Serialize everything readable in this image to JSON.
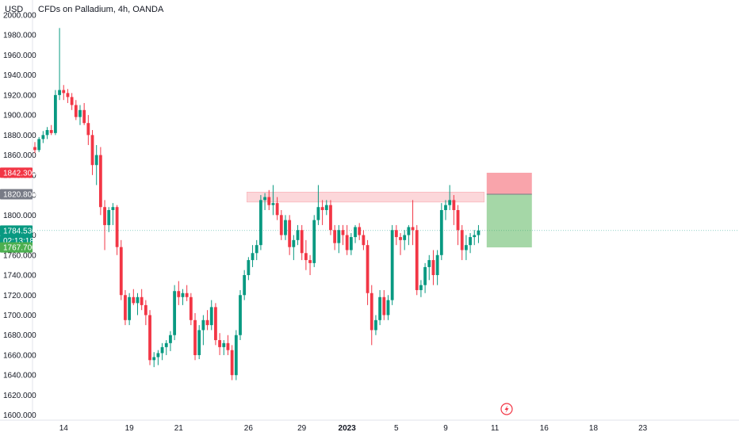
{
  "header": {
    "currency": "USD",
    "title": "CFDs on Palladium, 4h, OANDA"
  },
  "chart_data": {
    "type": "candlestick",
    "title": "CFDs on Palladium, 4h, OANDA",
    "y_unit": "USD",
    "ylim": [
      1595,
      2015
    ],
    "y_ticks": [
      2000,
      1980,
      1960,
      1940,
      1920,
      1900,
      1880,
      1860,
      1840,
      1820,
      1800,
      1780,
      1760,
      1740,
      1720,
      1700,
      1680,
      1660,
      1640,
      1620,
      1600
    ],
    "y_tick_labels": [
      "2000.000",
      "1980.000",
      "1960.000",
      "1940.000",
      "1920.000",
      "1900.000",
      "1880.000",
      "1860.000",
      "1840.000",
      "1820.000",
      "1800.000",
      "1780.000",
      "1760.000",
      "1740.000",
      "1720.000",
      "1700.000",
      "1680.000",
      "1660.000",
      "1640.000",
      "1620.000",
      "1600.000"
    ],
    "x_ticks": [
      {
        "label": "14",
        "bar": 7,
        "bold": false
      },
      {
        "label": "19",
        "bar": 23,
        "bold": false
      },
      {
        "label": "21",
        "bar": 35,
        "bold": false
      },
      {
        "label": "26",
        "bar": 52,
        "bold": false
      },
      {
        "label": "29",
        "bar": 65,
        "bold": false
      },
      {
        "label": "2023",
        "bar": 76,
        "bold": true
      },
      {
        "label": "5",
        "bar": 88,
        "bold": false
      },
      {
        "label": "9",
        "bar": 100,
        "bold": false
      },
      {
        "label": "11",
        "bar": 112,
        "bold": false
      },
      {
        "label": "16",
        "bar": 124,
        "bold": false
      },
      {
        "label": "18",
        "bar": 136,
        "bold": false
      },
      {
        "label": "23",
        "bar": 148,
        "bold": false
      }
    ],
    "bars_start_price": 1868,
    "candles": [
      [
        1868,
        1873,
        1862,
        1865
      ],
      [
        1865,
        1878,
        1863,
        1876
      ],
      [
        1876,
        1884,
        1872,
        1880
      ],
      [
        1880,
        1888,
        1876,
        1885
      ],
      [
        1885,
        1890,
        1880,
        1882
      ],
      [
        1882,
        1925,
        1880,
        1920
      ],
      [
        1920,
        1987,
        1915,
        1925
      ],
      [
        1925,
        1930,
        1915,
        1922
      ],
      [
        1922,
        1926,
        1912,
        1918
      ],
      [
        1918,
        1922,
        1905,
        1910
      ],
      [
        1910,
        1915,
        1895,
        1898
      ],
      [
        1898,
        1910,
        1890,
        1905
      ],
      [
        1905,
        1912,
        1890,
        1892
      ],
      [
        1892,
        1900,
        1870,
        1880
      ],
      [
        1880,
        1885,
        1840,
        1850
      ],
      [
        1850,
        1870,
        1830,
        1860
      ],
      [
        1860,
        1868,
        1800,
        1808
      ],
      [
        1808,
        1815,
        1765,
        1790
      ],
      [
        1790,
        1808,
        1783,
        1805
      ],
      [
        1805,
        1812,
        1790,
        1808
      ],
      [
        1808,
        1810,
        1760,
        1768
      ],
      [
        1768,
        1775,
        1715,
        1720
      ],
      [
        1720,
        1725,
        1690,
        1695
      ],
      [
        1695,
        1722,
        1690,
        1718
      ],
      [
        1718,
        1726,
        1710,
        1712
      ],
      [
        1712,
        1722,
        1700,
        1718
      ],
      [
        1718,
        1726,
        1705,
        1710
      ],
      [
        1710,
        1715,
        1690,
        1700
      ],
      [
        1700,
        1705,
        1650,
        1655
      ],
      [
        1655,
        1663,
        1648,
        1658
      ],
      [
        1658,
        1665,
        1650,
        1662
      ],
      [
        1662,
        1672,
        1655,
        1668
      ],
      [
        1668,
        1675,
        1660,
        1672
      ],
      [
        1672,
        1684,
        1664,
        1680
      ],
      [
        1680,
        1730,
        1675,
        1724
      ],
      [
        1724,
        1734,
        1710,
        1718
      ],
      [
        1718,
        1726,
        1710,
        1722
      ],
      [
        1722,
        1730,
        1714,
        1718
      ],
      [
        1718,
        1722,
        1690,
        1695
      ],
      [
        1695,
        1702,
        1655,
        1660
      ],
      [
        1660,
        1690,
        1656,
        1685
      ],
      [
        1685,
        1700,
        1670,
        1695
      ],
      [
        1695,
        1705,
        1685,
        1690
      ],
      [
        1690,
        1715,
        1685,
        1708
      ],
      [
        1708,
        1712,
        1670,
        1675
      ],
      [
        1675,
        1682,
        1660,
        1668
      ],
      [
        1668,
        1675,
        1660,
        1672
      ],
      [
        1672,
        1680,
        1660,
        1665
      ],
      [
        1665,
        1670,
        1635,
        1640
      ],
      [
        1640,
        1685,
        1635,
        1680
      ],
      [
        1680,
        1725,
        1675,
        1720
      ],
      [
        1720,
        1745,
        1715,
        1740
      ],
      [
        1740,
        1758,
        1735,
        1755
      ],
      [
        1755,
        1770,
        1748,
        1762
      ],
      [
        1762,
        1775,
        1755,
        1770
      ],
      [
        1770,
        1820,
        1765,
        1815
      ],
      [
        1815,
        1822,
        1805,
        1818
      ],
      [
        1818,
        1825,
        1805,
        1810
      ],
      [
        1810,
        1830,
        1800,
        1812
      ],
      [
        1812,
        1818,
        1795,
        1800
      ],
      [
        1800,
        1805,
        1775,
        1780
      ],
      [
        1780,
        1800,
        1775,
        1795
      ],
      [
        1795,
        1800,
        1760,
        1768
      ],
      [
        1768,
        1780,
        1755,
        1775
      ],
      [
        1775,
        1790,
        1770,
        1785
      ],
      [
        1785,
        1790,
        1755,
        1762
      ],
      [
        1762,
        1775,
        1745,
        1755
      ],
      [
        1755,
        1760,
        1740,
        1752
      ],
      [
        1752,
        1800,
        1748,
        1795
      ],
      [
        1795,
        1830,
        1790,
        1808
      ],
      [
        1808,
        1815,
        1790,
        1805
      ],
      [
        1805,
        1815,
        1800,
        1810
      ],
      [
        1810,
        1815,
        1780,
        1785
      ],
      [
        1785,
        1790,
        1765,
        1772
      ],
      [
        1772,
        1790,
        1762,
        1785
      ],
      [
        1785,
        1790,
        1770,
        1780
      ],
      [
        1780,
        1790,
        1760,
        1765
      ],
      [
        1765,
        1782,
        1760,
        1778
      ],
      [
        1778,
        1790,
        1772,
        1788
      ],
      [
        1788,
        1792,
        1775,
        1780
      ],
      [
        1780,
        1785,
        1765,
        1770
      ],
      [
        1770,
        1775,
        1710,
        1722
      ],
      [
        1722,
        1730,
        1670,
        1685
      ],
      [
        1685,
        1700,
        1680,
        1695
      ],
      [
        1695,
        1725,
        1690,
        1718
      ],
      [
        1718,
        1725,
        1695,
        1700
      ],
      [
        1700,
        1720,
        1695,
        1715
      ],
      [
        1715,
        1790,
        1710,
        1785
      ],
      [
        1785,
        1790,
        1770,
        1778
      ],
      [
        1778,
        1782,
        1760,
        1775
      ],
      [
        1775,
        1785,
        1765,
        1780
      ],
      [
        1780,
        1790,
        1770,
        1788
      ],
      [
        1788,
        1815,
        1770,
        1785
      ],
      [
        1785,
        1790,
        1720,
        1725
      ],
      [
        1725,
        1735,
        1718,
        1730
      ],
      [
        1730,
        1752,
        1722,
        1748
      ],
      [
        1748,
        1760,
        1735,
        1755
      ],
      [
        1755,
        1765,
        1730,
        1740
      ],
      [
        1740,
        1765,
        1730,
        1760
      ],
      [
        1760,
        1812,
        1755,
        1805
      ],
      [
        1805,
        1815,
        1795,
        1810
      ],
      [
        1810,
        1830,
        1805,
        1815
      ],
      [
        1815,
        1820,
        1790,
        1805
      ],
      [
        1805,
        1810,
        1770,
        1785
      ],
      [
        1785,
        1790,
        1755,
        1765
      ],
      [
        1765,
        1780,
        1755,
        1770
      ],
      [
        1770,
        1782,
        1762,
        1778
      ],
      [
        1778,
        1785,
        1770,
        1780
      ],
      [
        1780,
        1790,
        1772,
        1784.536
      ]
    ],
    "resistance_zone": {
      "from_bar": 52,
      "to_bar": 109,
      "low": 1813,
      "high": 1823
    },
    "position": {
      "entry": 1820.8,
      "stop": 1842.3,
      "target": 1767.7,
      "start_bar": 110,
      "end_bar": 121
    },
    "current_price": 1784.536,
    "price_tags": [
      {
        "label": "1842.300",
        "value": 1842.3,
        "color": "#f23645"
      },
      {
        "label": "1820.800",
        "value": 1820.8,
        "color": "#787b86"
      },
      {
        "label": "1784.536",
        "value": 1784.536,
        "color": "#089981"
      },
      {
        "label": "02:13:18",
        "value": 1774.5,
        "color": "#089981"
      },
      {
        "label": "1767.700",
        "value": 1767.7,
        "color": "#4caf50"
      }
    ],
    "colors": {
      "up": "#089981",
      "down": "#f23645"
    }
  }
}
